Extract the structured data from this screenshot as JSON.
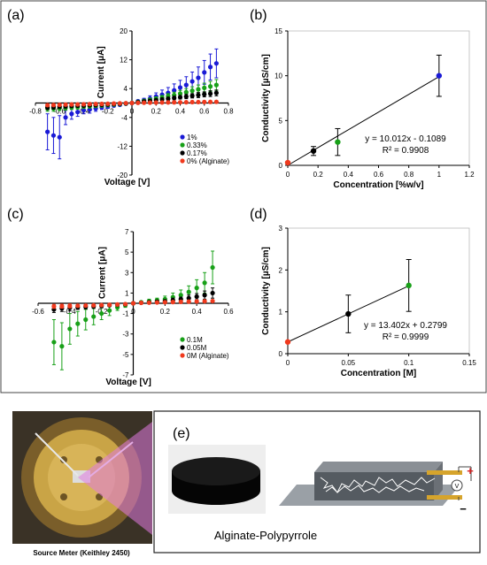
{
  "panel_labels": {
    "a": "(a)",
    "b": "(b)",
    "c": "(c)",
    "d": "(d)",
    "e": "(e)"
  },
  "chart_data": [
    {
      "id": "a",
      "type": "scatter",
      "xlabel": "Voltage [V]",
      "ylabel": "Current [μA]",
      "xlim": [
        -0.8,
        0.8
      ],
      "ylim": [
        -20,
        20
      ],
      "xticks": [
        "-0.8",
        "-0.6",
        "-0.4",
        "-0.2",
        "0",
        "0.2",
        "0.4",
        "0.6",
        "0.8"
      ],
      "xtick_values": [
        -0.8,
        -0.6,
        -0.4,
        -0.2,
        0,
        0.2,
        0.4,
        0.6,
        0.8
      ],
      "yticks": [
        "20",
        "12",
        "4",
        "-4",
        "-12",
        "-20"
      ],
      "ytick_values": [
        20,
        12,
        4,
        -4,
        -12,
        -20
      ],
      "legend": "bottom-center",
      "x": [
        -0.7,
        -0.65,
        -0.6,
        -0.55,
        -0.5,
        -0.45,
        -0.4,
        -0.35,
        -0.3,
        -0.25,
        -0.2,
        -0.15,
        -0.1,
        -0.05,
        0,
        0.05,
        0.1,
        0.15,
        0.2,
        0.25,
        0.3,
        0.35,
        0.4,
        0.45,
        0.5,
        0.55,
        0.6,
        0.65,
        0.7
      ],
      "series": [
        {
          "name": "1%",
          "color": "#1a1ad6",
          "y": [
            -8,
            -9,
            -9.5,
            -4,
            -3,
            -2.5,
            -2,
            -1.8,
            -1.5,
            -1.2,
            -1,
            -0.7,
            -0.5,
            -0.2,
            0,
            0.5,
            0.8,
            1.2,
            1.8,
            2.3,
            2.8,
            3.5,
            4.3,
            5,
            6,
            7,
            8.5,
            10,
            11
          ],
          "err": [
            5,
            5,
            6,
            2,
            1.5,
            1.2,
            1,
            1,
            0.8,
            0.6,
            0.5,
            0.4,
            0.3,
            0.2,
            0,
            0.3,
            0.5,
            0.8,
            1,
            1.3,
            1.5,
            1.8,
            2,
            2.3,
            2.6,
            3,
            3.3,
            3.6,
            4
          ]
        },
        {
          "name": "0.33%",
          "color": "#18a018",
          "y": [
            -1.5,
            -1.5,
            -1.4,
            -1.3,
            -1.2,
            -1.1,
            -1,
            -0.9,
            -0.8,
            -0.7,
            -0.6,
            -0.45,
            -0.3,
            -0.15,
            0,
            0.3,
            0.6,
            0.9,
            1.2,
            1.5,
            1.9,
            2.2,
            2.6,
            3,
            3.4,
            3.8,
            4.2,
            4.6,
            5
          ],
          "err": [
            0.8,
            0.8,
            0.7,
            0.7,
            0.6,
            0.6,
            0.5,
            0.5,
            0.4,
            0.4,
            0.3,
            0.3,
            0.2,
            0.1,
            0,
            0.2,
            0.3,
            0.4,
            0.5,
            0.6,
            0.7,
            0.8,
            0.9,
            1,
            1.1,
            1.2,
            1.3,
            1.4,
            1.5
          ]
        },
        {
          "name": "0.17%",
          "color": "#000000",
          "y": [
            -1.2,
            -1.1,
            -1,
            -0.9,
            -0.8,
            -0.75,
            -0.7,
            -0.6,
            -0.55,
            -0.5,
            -0.4,
            -0.3,
            -0.2,
            -0.1,
            0,
            0.2,
            0.4,
            0.6,
            0.8,
            1,
            1.2,
            1.4,
            1.6,
            1.8,
            2,
            2.2,
            2.4,
            2.6,
            2.8
          ],
          "err": [
            0.6,
            0.6,
            0.5,
            0.5,
            0.4,
            0.4,
            0.4,
            0.3,
            0.3,
            0.3,
            0.2,
            0.2,
            0.1,
            0.1,
            0,
            0.1,
            0.2,
            0.3,
            0.3,
            0.4,
            0.4,
            0.5,
            0.5,
            0.6,
            0.6,
            0.7,
            0.7,
            0.8,
            0.8
          ]
        },
        {
          "name": "0% (Alginate)",
          "color": "#f03a1e",
          "y": [
            -0.6,
            -0.55,
            -0.5,
            -0.45,
            -0.4,
            -0.38,
            -0.35,
            -0.3,
            -0.27,
            -0.24,
            -0.2,
            -0.15,
            -0.1,
            -0.05,
            0,
            0.05,
            0.08,
            0.1,
            0.12,
            0.14,
            0.16,
            0.18,
            0.2,
            0.22,
            0.24,
            0.26,
            0.28,
            0.3,
            0.32
          ],
          "err": [
            0.3,
            0.3,
            0.3,
            0.3,
            0.2,
            0.2,
            0.2,
            0.2,
            0.2,
            0.2,
            0.1,
            0.1,
            0.1,
            0.1,
            0,
            0.1,
            0.1,
            0.1,
            0.1,
            0.1,
            0.1,
            0.1,
            0.1,
            0.1,
            0.1,
            0.1,
            0.1,
            0.1,
            0.1
          ]
        }
      ]
    },
    {
      "id": "b",
      "type": "scatter",
      "xlabel": "Concentration [%w/v]",
      "ylabel": "Conductivity [µS/cm]",
      "xlim": [
        0,
        1.2
      ],
      "ylim": [
        0,
        15
      ],
      "xticks": [
        "0",
        "0.2",
        "0.4",
        "0.6",
        "0.8",
        "1",
        "1.2"
      ],
      "xtick_values": [
        0,
        0.2,
        0.4,
        0.6,
        0.8,
        1,
        1.2
      ],
      "yticks": [
        "0",
        "5",
        "10",
        "15"
      ],
      "ytick_values": [
        0,
        5,
        10,
        15
      ],
      "fit": {
        "slope": 10.012,
        "intercept": -0.1089,
        "equation": "y = 10.012x - 0.1089",
        "r2": "R² = 0.9908"
      },
      "points": [
        {
          "x": 0,
          "y": 0.3,
          "err": 0.1,
          "color": "#f03a1e"
        },
        {
          "x": 0.17,
          "y": 1.6,
          "err": 0.5,
          "color": "#000000"
        },
        {
          "x": 0.33,
          "y": 2.6,
          "err": 1.5,
          "color": "#18a018"
        },
        {
          "x": 1,
          "y": 10,
          "err": 2.3,
          "color": "#1a1ad6"
        }
      ]
    },
    {
      "id": "c",
      "type": "scatter",
      "xlabel": "Voltage [V]",
      "ylabel": "Current [μA]",
      "xlim": [
        -0.6,
        0.6
      ],
      "ylim": [
        -7,
        7
      ],
      "xticks": [
        "-0.6",
        "-0.4",
        "-0.2",
        "0",
        "0.2",
        "0.4",
        "0.6"
      ],
      "xtick_values": [
        -0.6,
        -0.4,
        -0.2,
        0,
        0.2,
        0.4,
        0.6
      ],
      "yticks": [
        "7",
        "5",
        "3",
        "1",
        "-1",
        "-3",
        "-5",
        "-7"
      ],
      "ytick_values": [
        7,
        5,
        3,
        1,
        -1,
        -3,
        -5,
        -7
      ],
      "legend": "bottom-center",
      "x": [
        -0.5,
        -0.45,
        -0.4,
        -0.35,
        -0.3,
        -0.25,
        -0.2,
        -0.15,
        -0.1,
        -0.05,
        0,
        0.05,
        0.1,
        0.15,
        0.2,
        0.25,
        0.3,
        0.35,
        0.4,
        0.45,
        0.5
      ],
      "series": [
        {
          "name": "0.1M",
          "color": "#18a018",
          "y": [
            -3.8,
            -4.2,
            -2.5,
            -2.0,
            -1.6,
            -1.3,
            -1.0,
            -0.7,
            -0.4,
            -0.2,
            0,
            0.1,
            0.2,
            0.3,
            0.4,
            0.6,
            0.8,
            1.1,
            1.5,
            2.0,
            3.5
          ],
          "err": [
            2.2,
            2.3,
            1.5,
            1.2,
            1.0,
            0.8,
            0.6,
            0.5,
            0.3,
            0.2,
            0,
            0.1,
            0.2,
            0.2,
            0.3,
            0.4,
            0.5,
            0.6,
            0.8,
            1.0,
            1.6
          ]
        },
        {
          "name": "0.05M",
          "color": "#000000",
          "y": [
            -0.6,
            -0.5,
            -0.45,
            -0.4,
            -0.35,
            -0.3,
            -0.25,
            -0.2,
            -0.15,
            -0.1,
            0,
            0.05,
            0.1,
            0.15,
            0.2,
            0.3,
            0.4,
            0.5,
            0.65,
            0.8,
            1.0
          ],
          "err": [
            0.3,
            0.3,
            0.3,
            0.2,
            0.2,
            0.2,
            0.2,
            0.1,
            0.1,
            0.1,
            0,
            0.1,
            0.1,
            0.1,
            0.1,
            0.2,
            0.2,
            0.3,
            0.3,
            0.4,
            0.5
          ]
        },
        {
          "name": "0M (Alginate)",
          "color": "#f03a1e",
          "y": [
            -0.3,
            -0.28,
            -0.26,
            -0.24,
            -0.22,
            -0.2,
            -0.18,
            -0.15,
            -0.12,
            -0.08,
            0,
            0.04,
            0.06,
            0.08,
            0.1,
            0.12,
            0.14,
            0.16,
            0.18,
            0.2,
            0.22
          ],
          "err": [
            0.2,
            0.2,
            0.2,
            0.1,
            0.1,
            0.1,
            0.1,
            0.1,
            0.1,
            0.1,
            0,
            0.1,
            0.1,
            0.1,
            0.1,
            0.1,
            0.1,
            0.1,
            0.1,
            0.1,
            0.1
          ]
        }
      ]
    },
    {
      "id": "d",
      "type": "scatter",
      "xlabel": "Concentration [M]",
      "ylabel": "Conductivity [µS/cm]",
      "xlim": [
        0,
        0.15
      ],
      "ylim": [
        0,
        3
      ],
      "xticks": [
        "0",
        "0.05",
        "0.1",
        "0.15"
      ],
      "xtick_values": [
        0,
        0.05,
        0.1,
        0.15
      ],
      "yticks": [
        "0",
        "1",
        "2",
        "3"
      ],
      "ytick_values": [
        0,
        1,
        2,
        3
      ],
      "fit": {
        "slope": 13.402,
        "intercept": 0.2799,
        "equation": "y = 13.402x + 0.2799",
        "r2": "R² = 0.9999"
      },
      "points": [
        {
          "x": 0,
          "y": 0.28,
          "err": 0.05,
          "color": "#f03a1e"
        },
        {
          "x": 0.05,
          "y": 0.95,
          "err": 0.45,
          "color": "#000000"
        },
        {
          "x": 0.1,
          "y": 1.63,
          "err": 0.62,
          "color": "#18a018"
        }
      ]
    }
  ],
  "panel_e": {
    "photo_caption": "Source Meter (Keithley 2450)",
    "sample_caption": "Alginate-Polypyrrole",
    "meter_symbol": "V",
    "plus": "+",
    "minus": "−"
  },
  "colors": {
    "blue": "#1a1ad6",
    "green": "#18a018",
    "black": "#000000",
    "red": "#f03a1e",
    "magenta": "#e07ae0"
  }
}
